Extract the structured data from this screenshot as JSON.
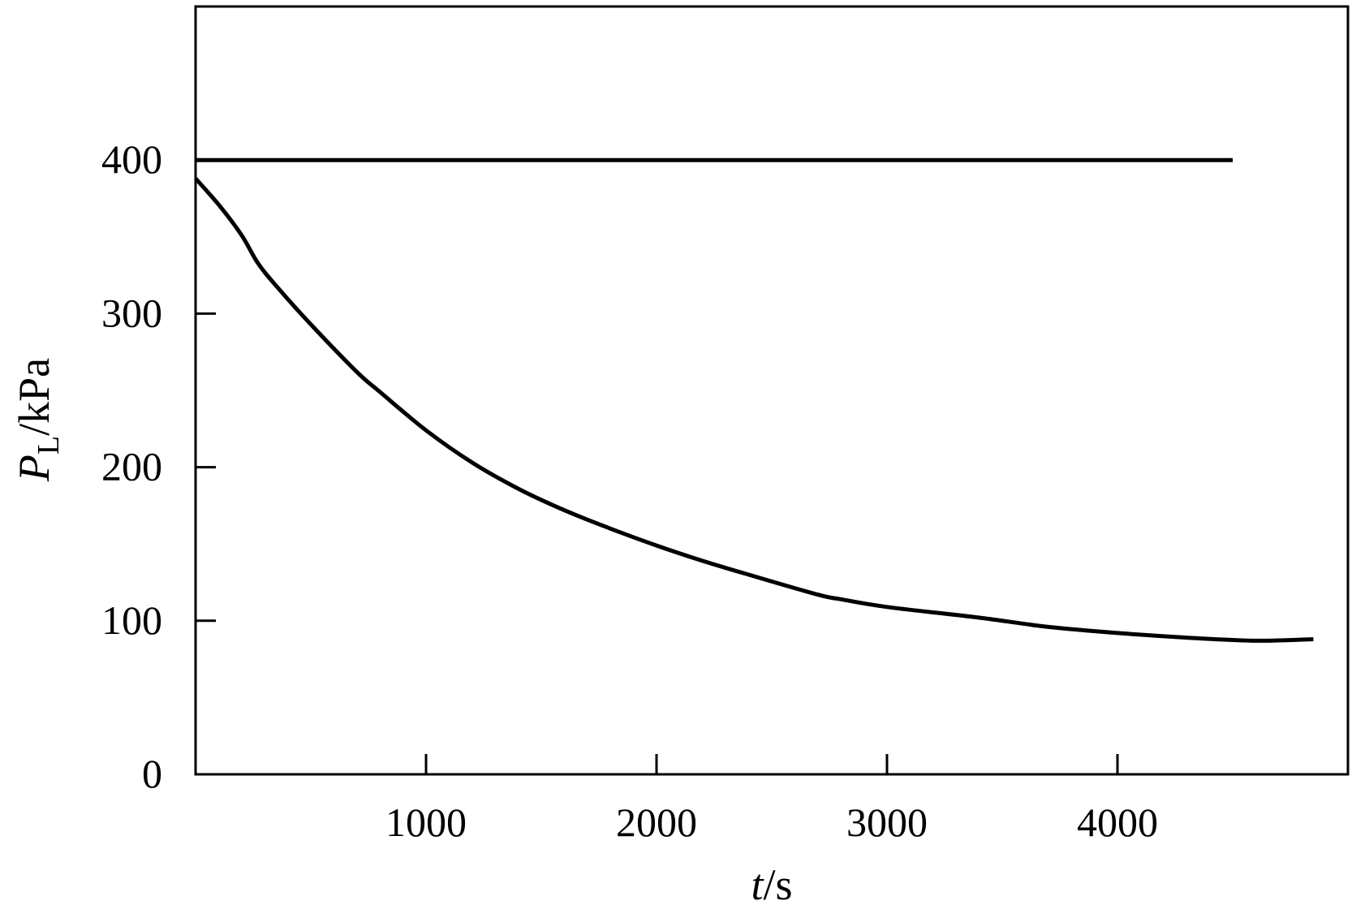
{
  "chart_data": {
    "type": "line",
    "title": "",
    "xlabel": {
      "var": "t",
      "unit": "/s"
    },
    "ylabel": {
      "var": "P",
      "sub": "L",
      "unit": "/kPa"
    },
    "xlim": [
      0,
      5000
    ],
    "ylim": [
      0,
      500
    ],
    "x_ticks": [
      1000,
      2000,
      3000,
      4000
    ],
    "y_ticks": [
      0,
      100,
      200,
      300,
      400
    ],
    "grid": false,
    "legend": "none",
    "series": [
      {
        "x": [
          0,
          4500
        ],
        "y": [
          400,
          400
        ]
      },
      {
        "x": [
          0,
          100,
          200,
          270,
          350,
          500,
          700,
          800,
          1000,
          1200,
          1400,
          1600,
          1800,
          2000,
          2200,
          2400,
          2700,
          2800,
          3000,
          3400,
          3700,
          4000,
          4300,
          4600,
          4850
        ],
        "y": [
          388,
          371,
          351,
          333,
          318,
          293,
          262,
          249,
          224,
          203,
          186,
          172,
          160,
          149,
          139,
          130,
          117,
          114,
          109,
          102,
          96,
          92,
          89,
          87,
          88
        ]
      }
    ]
  }
}
